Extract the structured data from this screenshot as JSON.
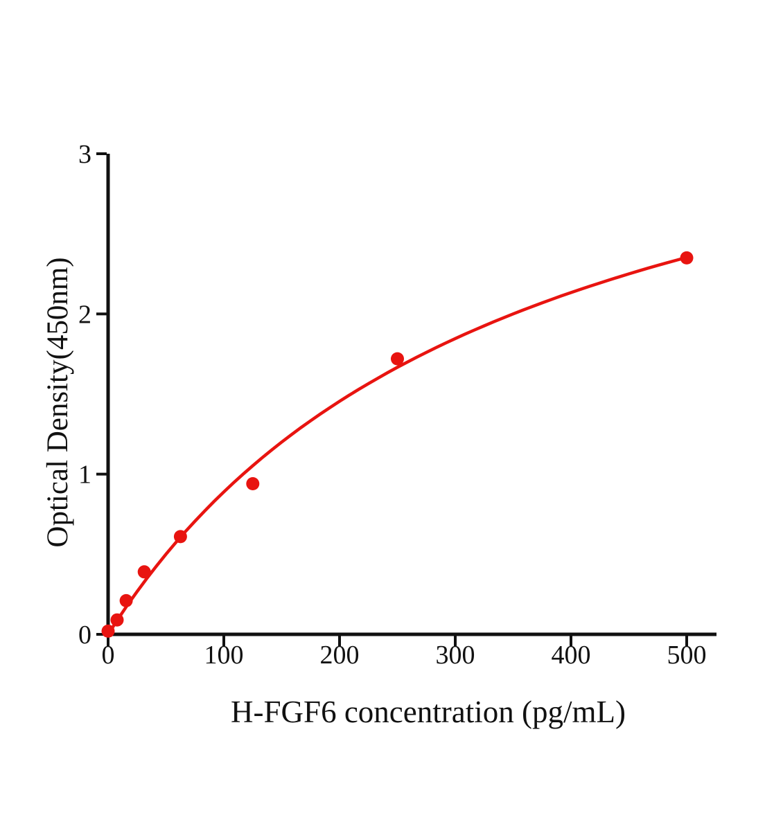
{
  "page": {
    "background_color": "#ffffff",
    "text_color": "#111111"
  },
  "chart_data": {
    "type": "scatter",
    "title": "",
    "xlabel": "H-FGF6 concentration (pg/mL)",
    "ylabel": "Optical Density(450nm)",
    "xlim": [
      0,
      525
    ],
    "ylim": [
      0,
      3
    ],
    "xticks": [
      "0",
      "100",
      "200",
      "300",
      "400",
      "500"
    ],
    "xtick_values": [
      0,
      100,
      200,
      300,
      400,
      500
    ],
    "yticks": [
      "0",
      "1",
      "2",
      "3"
    ],
    "ytick_values": [
      0,
      1,
      2,
      3
    ],
    "grid": false,
    "legend_position": "none",
    "accent_color": "#e81410",
    "axis_color": "#111111",
    "series": [
      {
        "marker": "circle",
        "marker_color": "#e81410",
        "line_color": "#e81410",
        "points": [
          {
            "x": 0,
            "y": 0.02
          },
          {
            "x": 7.8,
            "y": 0.09
          },
          {
            "x": 15.6,
            "y": 0.21
          },
          {
            "x": 31.25,
            "y": 0.39
          },
          {
            "x": 62.5,
            "y": 0.61
          },
          {
            "x": 125,
            "y": 0.94
          },
          {
            "x": 250,
            "y": 1.72
          },
          {
            "x": 500,
            "y": 2.35
          }
        ],
        "curve": {
          "formula": "y = a*x/(b+x)",
          "a": 4.0,
          "b": 350,
          "x_range": [
            0,
            500
          ]
        }
      }
    ]
  }
}
